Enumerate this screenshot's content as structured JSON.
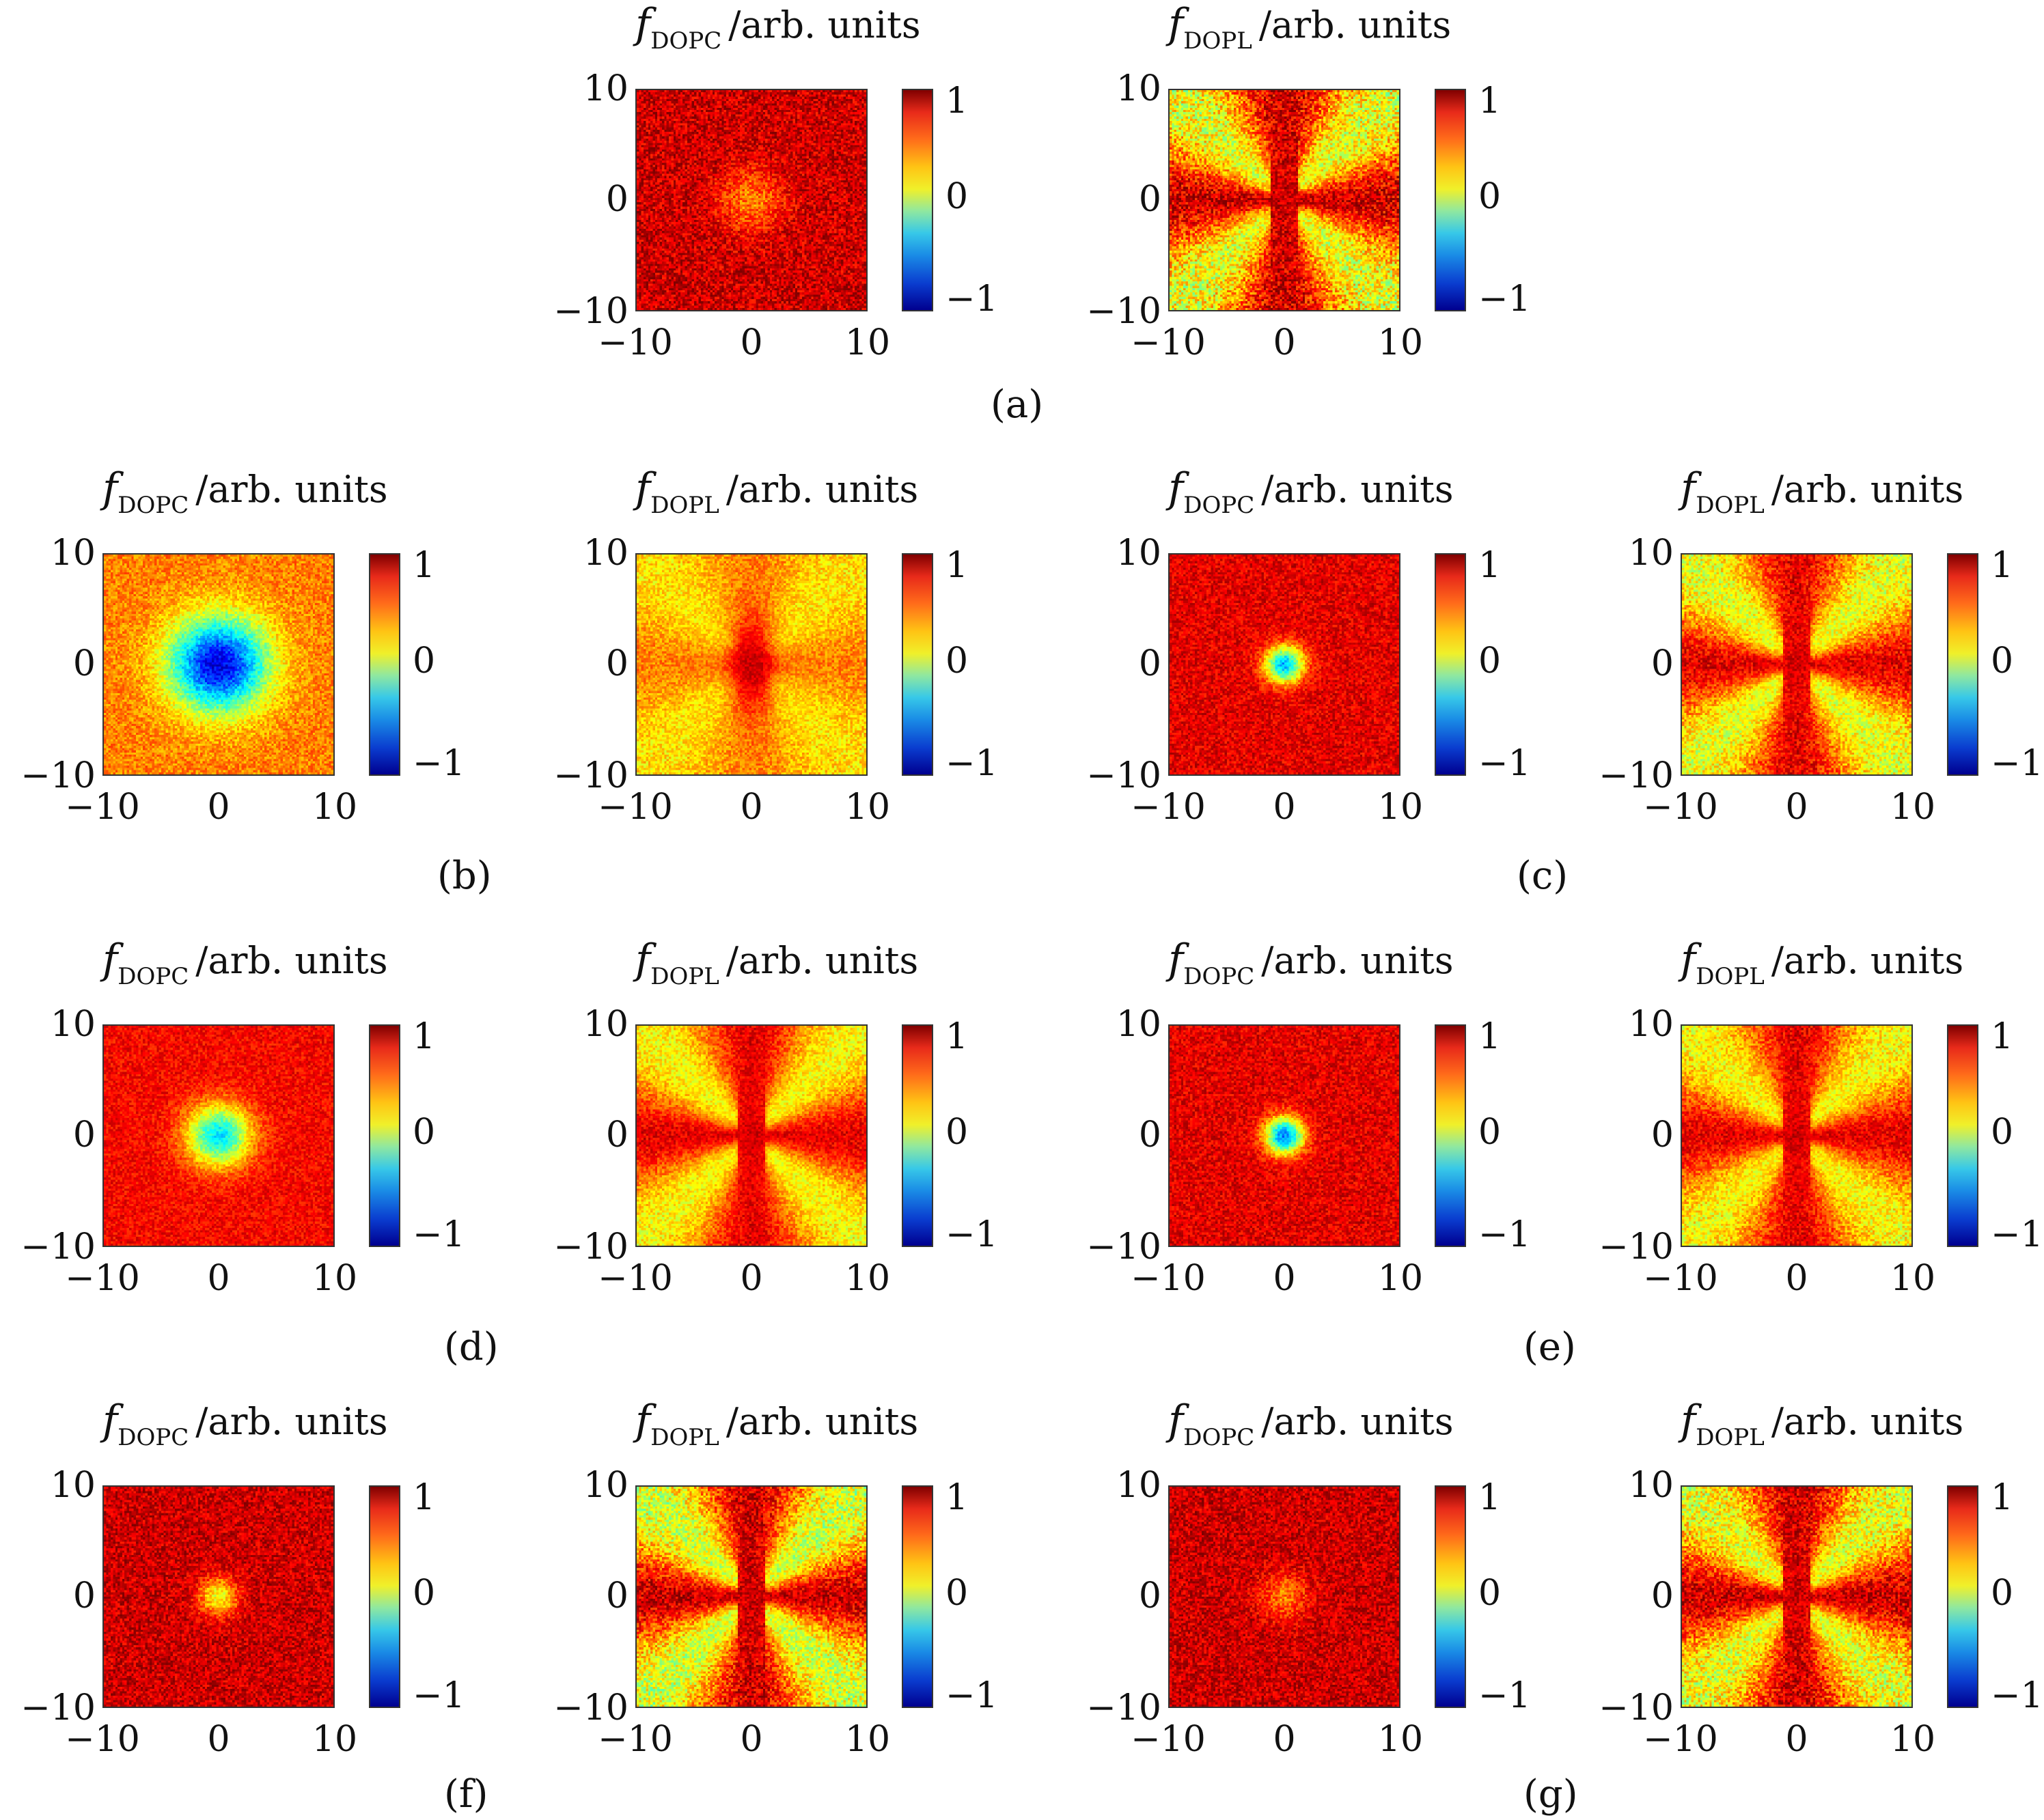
{
  "title_symbol": "f",
  "title_suffix": "/arb. units",
  "axis_ticks": [
    "−10",
    "0",
    "10"
  ],
  "colorbar_ticks": [
    "1",
    "0",
    "−1"
  ],
  "colormap": "jet",
  "chart_data": [
    {
      "type": "heatmap",
      "panel": "(a)",
      "title_sub": "DOPC",
      "pattern": "radial",
      "center_value": 0.5,
      "edge_value": 0.85,
      "core_radius": 2,
      "noise": 0.18,
      "xlim": [
        -10,
        10
      ],
      "ylim": [
        -10,
        10
      ],
      "clim": [
        -1,
        1
      ]
    },
    {
      "type": "heatmap",
      "panel": "(a)",
      "title_sub": "DOPL",
      "pattern": "cross",
      "diag_value": 0.2,
      "axis_value": 0.85,
      "noise": 0.25,
      "xlim": [
        -10,
        10
      ],
      "ylim": [
        -10,
        10
      ],
      "clim": [
        -1,
        1
      ]
    },
    {
      "type": "heatmap",
      "panel": "(b)",
      "title_sub": "DOPC",
      "pattern": "radial",
      "center_value": -0.8,
      "edge_value": 0.5,
      "core_radius": 3,
      "noise": 0.14,
      "xlim": [
        -10,
        10
      ],
      "ylim": [
        -10,
        10
      ],
      "clim": [
        -1,
        1
      ]
    },
    {
      "type": "heatmap",
      "panel": "(b)",
      "title_sub": "DOPL",
      "pattern": "cross-blob",
      "diag_value": 0.3,
      "axis_value": 0.5,
      "center_value": 0.85,
      "noise": 0.14,
      "xlim": [
        -10,
        10
      ],
      "ylim": [
        -10,
        10
      ],
      "clim": [
        -1,
        1
      ]
    },
    {
      "type": "heatmap",
      "panel": "(c)",
      "title_sub": "DOPC",
      "pattern": "radial",
      "center_value": -0.4,
      "edge_value": 0.8,
      "core_radius": 1.2,
      "noise": 0.14,
      "xlim": [
        -10,
        10
      ],
      "ylim": [
        -10,
        10
      ],
      "clim": [
        -1,
        1
      ]
    },
    {
      "type": "heatmap",
      "panel": "(c)",
      "title_sub": "DOPL",
      "pattern": "cross",
      "diag_value": 0.2,
      "axis_value": 0.8,
      "noise": 0.18,
      "xlim": [
        -10,
        10
      ],
      "ylim": [
        -10,
        10
      ],
      "clim": [
        -1,
        1
      ]
    },
    {
      "type": "heatmap",
      "panel": "(d)",
      "title_sub": "DOPC",
      "pattern": "radial",
      "center_value": -0.3,
      "edge_value": 0.75,
      "core_radius": 2,
      "noise": 0.12,
      "xlim": [
        -10,
        10
      ],
      "ylim": [
        -10,
        10
      ],
      "clim": [
        -1,
        1
      ]
    },
    {
      "type": "heatmap",
      "panel": "(d)",
      "title_sub": "DOPL",
      "pattern": "cross",
      "diag_value": 0.25,
      "axis_value": 0.8,
      "noise": 0.14,
      "xlim": [
        -10,
        10
      ],
      "ylim": [
        -10,
        10
      ],
      "clim": [
        -1,
        1
      ]
    },
    {
      "type": "heatmap",
      "panel": "(e)",
      "title_sub": "DOPC",
      "pattern": "radial",
      "center_value": -0.5,
      "edge_value": 0.8,
      "core_radius": 1.2,
      "noise": 0.14,
      "xlim": [
        -10,
        10
      ],
      "ylim": [
        -10,
        10
      ],
      "clim": [
        -1,
        1
      ]
    },
    {
      "type": "heatmap",
      "panel": "(e)",
      "title_sub": "DOPL",
      "pattern": "cross",
      "diag_value": 0.25,
      "axis_value": 0.8,
      "noise": 0.16,
      "xlim": [
        -10,
        10
      ],
      "ylim": [
        -10,
        10
      ],
      "clim": [
        -1,
        1
      ]
    },
    {
      "type": "heatmap",
      "panel": "(f)",
      "title_sub": "DOPC",
      "pattern": "radial",
      "center_value": 0.2,
      "edge_value": 0.85,
      "core_radius": 1.2,
      "noise": 0.16,
      "xlim": [
        -10,
        10
      ],
      "ylim": [
        -10,
        10
      ],
      "clim": [
        -1,
        1
      ]
    },
    {
      "type": "heatmap",
      "panel": "(f)",
      "title_sub": "DOPL",
      "pattern": "cross",
      "diag_value": 0.15,
      "axis_value": 0.85,
      "noise": 0.22,
      "xlim": [
        -10,
        10
      ],
      "ylim": [
        -10,
        10
      ],
      "clim": [
        -1,
        1
      ]
    },
    {
      "type": "heatmap",
      "panel": "(g)",
      "title_sub": "DOPC",
      "pattern": "radial",
      "center_value": 0.5,
      "edge_value": 0.85,
      "core_radius": 1.5,
      "noise": 0.16,
      "xlim": [
        -10,
        10
      ],
      "ylim": [
        -10,
        10
      ],
      "clim": [
        -1,
        1
      ]
    },
    {
      "type": "heatmap",
      "panel": "(g)",
      "title_sub": "DOPL",
      "pattern": "cross",
      "diag_value": 0.2,
      "axis_value": 0.85,
      "noise": 0.22,
      "xlim": [
        -10,
        10
      ],
      "ylim": [
        -10,
        10
      ],
      "clim": [
        -1,
        1
      ]
    }
  ],
  "panel_labels": [
    "(a)",
    "(b)",
    "(c)",
    "(d)",
    "(e)",
    "(f)",
    "(g)"
  ]
}
